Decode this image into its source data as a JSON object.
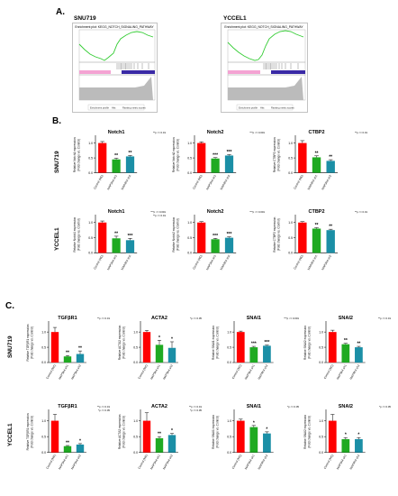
{
  "panels": {
    "a": "A.",
    "b": "B.",
    "c": "C."
  },
  "gsea": [
    {
      "cell_line": "SNU719",
      "title": "Enrichment plot: KEGG_NOTCH_SIGNALING_PATHWAY",
      "leg1": "Enrichment profile",
      "leg2": "Hits",
      "leg3": "Ranking metric scores"
    },
    {
      "cell_line": "YCCEL1",
      "title": "Enrichment plot: KEGG_NOTCH_SIGNALING_PATHWAY",
      "leg1": "Enrichment profile",
      "leg2": "Hits",
      "leg3": "Ranking metric scores"
    }
  ],
  "row_labels": {
    "b_top": "SNU719",
    "b_bottom": "YCCEL1",
    "c_top": "SNU719",
    "c_bottom": "YCCEL1"
  },
  "colors": {
    "control": "#ff0000",
    "sh1": "#1faa22",
    "sh2": "#1b8fa6"
  },
  "chart_data": [
    {
      "type": "bar",
      "id": "b-snu-notch1",
      "title": "Notch1",
      "ylabel": "Relative Notch1 expression\n(Fold change vs. Control)",
      "categories": [
        "Control (NC)",
        "MAP3K4 sh1",
        "MAP3K4 sh2"
      ],
      "values": [
        1.0,
        0.45,
        0.55
      ],
      "errors": [
        0.05,
        0.04,
        0.03
      ],
      "stars": [
        "",
        "**",
        "**"
      ],
      "ylim": [
        0,
        1.2
      ],
      "yticks": [
        "0.0",
        "0.5",
        "1.0"
      ],
      "note": "**p <= 0.01"
    },
    {
      "type": "bar",
      "id": "b-snu-notch2",
      "title": "Notch2",
      "ylabel": "Relative Notch2 expression\n(Fold change vs. Control)",
      "categories": [
        "Control (NC)",
        "MAP3K4 sh1",
        "MAP3K4 sh2"
      ],
      "values": [
        1.0,
        0.48,
        0.58
      ],
      "errors": [
        0.04,
        0.03,
        0.03
      ],
      "stars": [
        "",
        "***",
        "***"
      ],
      "ylim": [
        0,
        1.2
      ],
      "yticks": [
        "0.0",
        "0.5",
        "1.0"
      ],
      "note": "***p <= 0.001"
    },
    {
      "type": "bar",
      "id": "b-snu-ctbp2",
      "title": "CTBP2",
      "ylabel": "Relative CTBP2 expression\n(Fold change vs. Control)",
      "categories": [
        "Control (NC)",
        "MAP3K4 sh1",
        "MAP3K4 sh2"
      ],
      "values": [
        1.0,
        0.52,
        0.4
      ],
      "errors": [
        0.08,
        0.05,
        0.04
      ],
      "stars": [
        "",
        "**",
        "**"
      ],
      "ylim": [
        0,
        1.2
      ],
      "yticks": [
        "0.0",
        "0.5",
        "1.0"
      ],
      "note": "**p <= 0.01"
    },
    {
      "type": "bar",
      "id": "b-ycc-notch1",
      "title": "Notch1",
      "ylabel": "Relative Notch1 expression\n(Fold change vs. Control)",
      "categories": [
        "Control (NC)",
        "MAP3K4 sh1",
        "MAP3K4 sh2"
      ],
      "values": [
        1.0,
        0.48,
        0.42
      ],
      "errors": [
        0.05,
        0.07,
        0.06
      ],
      "stars": [
        "",
        "**",
        "***"
      ],
      "ylim": [
        0,
        1.2
      ],
      "yticks": [
        "0.0",
        "0.5",
        "1.0"
      ],
      "note": "***p <= 0.001\n**p <= 0.01"
    },
    {
      "type": "bar",
      "id": "b-ycc-notch2",
      "title": "Notch2",
      "ylabel": "Relative Notch2 expression\n(Fold change vs. Control)",
      "categories": [
        "Control (NC)",
        "MAP3K4 sh1",
        "MAP3K4 sh2"
      ],
      "values": [
        1.0,
        0.45,
        0.5
      ],
      "errors": [
        0.03,
        0.03,
        0.03
      ],
      "stars": [
        "",
        "***",
        "***"
      ],
      "ylim": [
        0,
        1.2
      ],
      "yticks": [
        "0.0",
        "0.5",
        "1.0"
      ],
      "note": "***p <= 0.001"
    },
    {
      "type": "bar",
      "id": "b-ycc-ctbp2",
      "title": "CTBP2",
      "ylabel": "Relative CTBP2 expression\n(Fold change vs. Control)",
      "categories": [
        "Control (NC)",
        "MAP3K4 sh1",
        "MAP3K4 sh2"
      ],
      "values": [
        1.0,
        0.8,
        0.75
      ],
      "errors": [
        0.03,
        0.03,
        0.03
      ],
      "stars": [
        "",
        "**",
        "**"
      ],
      "ylim": [
        0,
        1.2
      ],
      "yticks": [
        "0.0",
        "0.5",
        "1.0"
      ],
      "note": "**p <= 0.01"
    },
    {
      "type": "bar",
      "id": "c-snu-tgfbr1",
      "title": "TGFβR1",
      "ylabel": "Relative TGFβR1 expression\n(Fold change vs. Control)",
      "categories": [
        "Control (NC)",
        "MAP3K4 sh1",
        "MAP3K4 sh2"
      ],
      "values": [
        1.0,
        0.2,
        0.28
      ],
      "errors": [
        0.15,
        0.03,
        0.1
      ],
      "stars": [
        "",
        "**",
        "**"
      ],
      "ylim": [
        0,
        1.3
      ],
      "yticks": [
        "0.0",
        "0.5",
        "1.0"
      ],
      "note": "**p <= 0.01"
    },
    {
      "type": "bar",
      "id": "c-snu-acta2",
      "title": "ACTA2",
      "ylabel": "Relative ACTA2 expression\n(Fold change vs. Control)",
      "categories": [
        "Control (NC)",
        "MAP3K4 sh1",
        "MAP3K4 sh2"
      ],
      "values": [
        1.0,
        0.58,
        0.48
      ],
      "errors": [
        0.05,
        0.15,
        0.2
      ],
      "stars": [
        "",
        "*",
        "*"
      ],
      "ylim": [
        0,
        1.3
      ],
      "yticks": [
        "0.0",
        "0.5",
        "1.0"
      ],
      "note": "*p <= 0.05"
    },
    {
      "type": "bar",
      "id": "c-snu-snai1",
      "title": "SNAI1",
      "ylabel": "Relative SNAI1 expression\n(Fold change vs. Control)",
      "categories": [
        "Control (NC)",
        "MAP3K4 sh1",
        "MAP3K4 sh2"
      ],
      "values": [
        1.0,
        0.5,
        0.55
      ],
      "errors": [
        0.03,
        0.03,
        0.02
      ],
      "stars": [
        "",
        "***",
        "***"
      ],
      "ylim": [
        0,
        1.3
      ],
      "yticks": [
        "0.0",
        "0.5",
        "1.0"
      ],
      "note": "***p <= 0.001"
    },
    {
      "type": "bar",
      "id": "c-snu-snai2",
      "title": "SNAI2",
      "ylabel": "Relative SNAI2 expression\n(Fold change vs. Control)",
      "categories": [
        "Control (NC)",
        "MAP3K4 sh1",
        "MAP3K4 sh2"
      ],
      "values": [
        1.0,
        0.6,
        0.5
      ],
      "errors": [
        0.06,
        0.03,
        0.03
      ],
      "stars": [
        "",
        "**",
        "**"
      ],
      "ylim": [
        0,
        1.3
      ],
      "yticks": [
        "0.0",
        "0.5",
        "1.0"
      ],
      "note": "**p <= 0.01"
    },
    {
      "type": "bar",
      "id": "c-ycc-tgfbr1",
      "title": "TGFβR1",
      "ylabel": "Relative TGFβR1 expression\n(Fold change vs. Control)",
      "categories": [
        "Control (NC)",
        "MAP3K4 sh1",
        "MAP3K4 sh2"
      ],
      "values": [
        1.0,
        0.2,
        0.25
      ],
      "errors": [
        0.2,
        0.02,
        0.03
      ],
      "stars": [
        "",
        "**",
        "*"
      ],
      "ylim": [
        0,
        1.3
      ],
      "yticks": [
        "0.0",
        "0.5",
        "1.0"
      ],
      "note": "**p <= 0.01\n*p <= 0.05"
    },
    {
      "type": "bar",
      "id": "c-ycc-acta2",
      "title": "ACTA2",
      "ylabel": "Relative ACTA2 expression\n(Fold change vs. Control)",
      "categories": [
        "Control (NC)",
        "MAP3K4 sh1",
        "MAP3K4 sh2"
      ],
      "values": [
        1.0,
        0.45,
        0.55
      ],
      "errors": [
        0.25,
        0.05,
        0.05
      ],
      "stars": [
        "",
        "**",
        "*"
      ],
      "ylim": [
        0,
        1.3
      ],
      "yticks": [
        "0.0",
        "0.5",
        "1.0"
      ],
      "note": "**p <= 0.01\n*p <= 0.05"
    },
    {
      "type": "bar",
      "id": "c-ycc-snai1",
      "title": "SNAI1",
      "ylabel": "Relative SNAI1 expression\n(Fold change vs. Control)",
      "categories": [
        "Control (NC)",
        "MAP3K4 sh1",
        "MAP3K4 sh2"
      ],
      "values": [
        1.0,
        0.8,
        0.6
      ],
      "errors": [
        0.05,
        0.05,
        0.05
      ],
      "stars": [
        "",
        "*",
        "*"
      ],
      "ylim": [
        0,
        1.3
      ],
      "yticks": [
        "0.0",
        "0.5",
        "1.0"
      ],
      "note": "*p <= 0.05"
    },
    {
      "type": "bar",
      "id": "c-ycc-snai2",
      "title": "SNAI2",
      "ylabel": "Relative SNAI2 expression\n(Fold change vs. Control)",
      "categories": [
        "Control (NC)",
        "MAP3K4 sh1",
        "MAP3K4 sh2"
      ],
      "values": [
        1.0,
        0.42,
        0.42
      ],
      "errors": [
        0.2,
        0.05,
        0.05
      ],
      "stars": [
        "",
        "*",
        "*"
      ],
      "ylim": [
        0,
        1.3
      ],
      "yticks": [
        "0.0",
        "0.5",
        "1.0"
      ],
      "note": "*p <= 0.05"
    }
  ]
}
